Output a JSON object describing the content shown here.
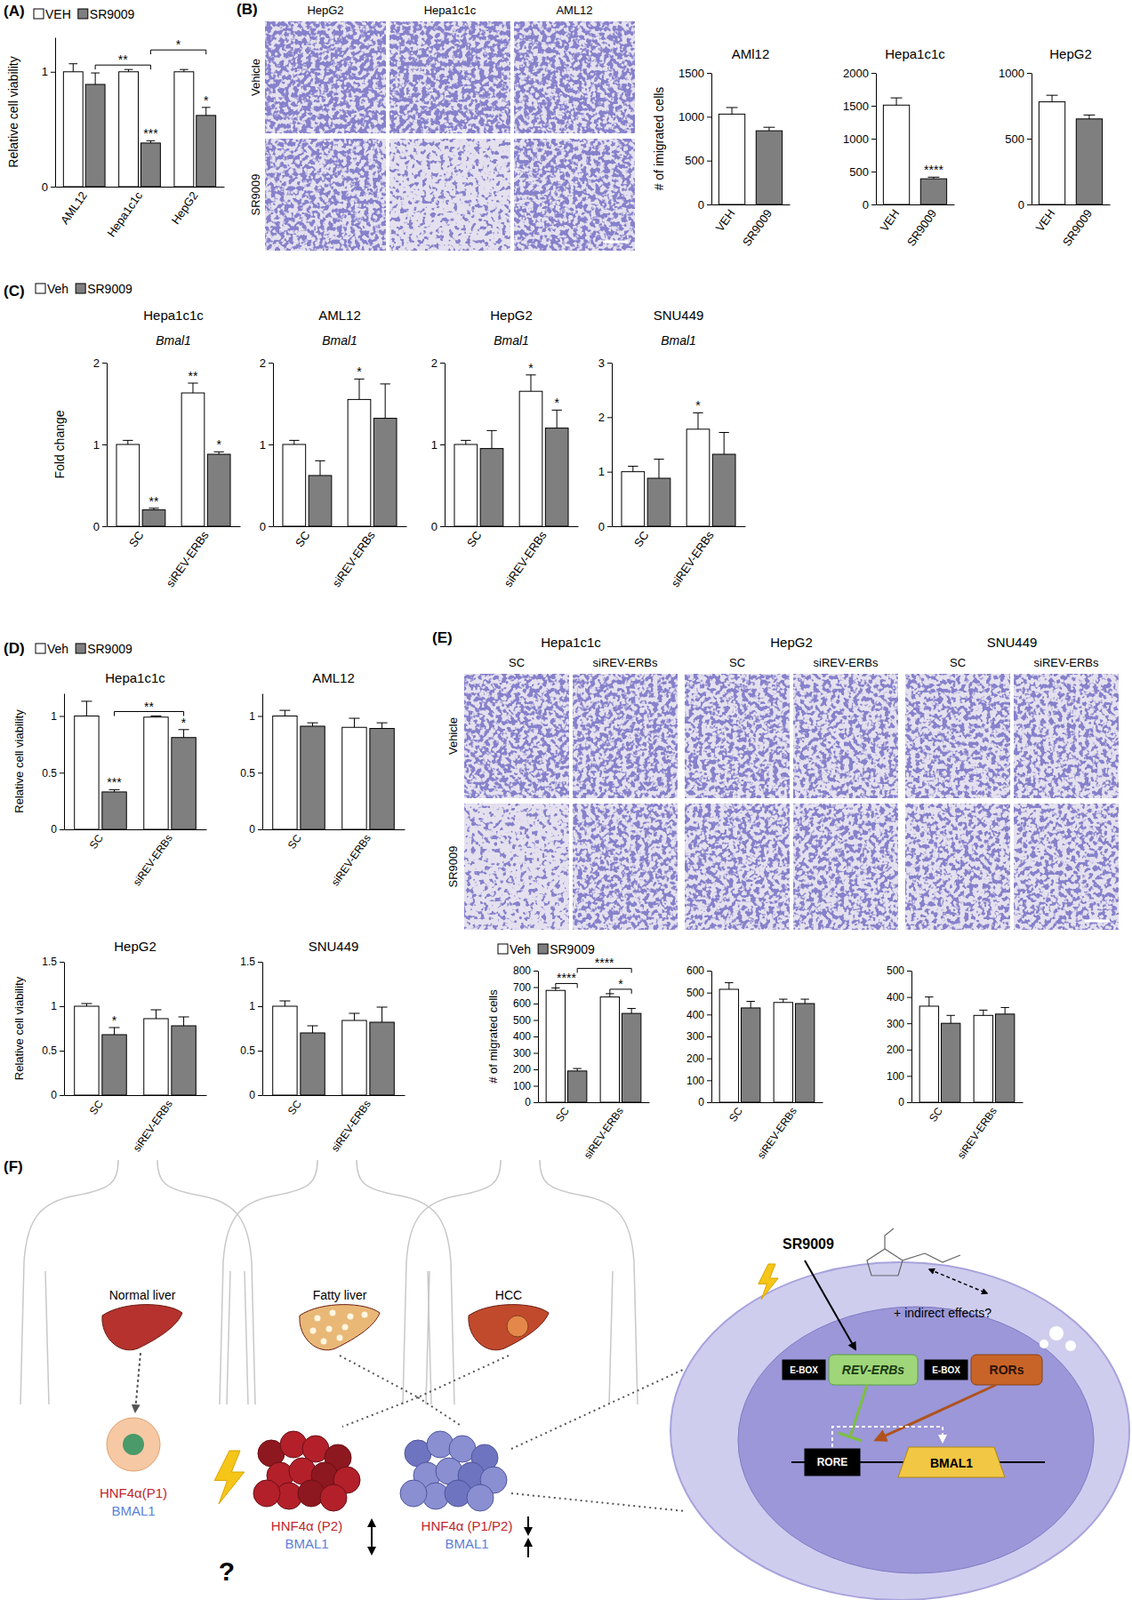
{
  "chart_data": [
    {
      "type": "bar",
      "y_label": "Relative cell viability",
      "categories": [
        "AML12",
        "Hepa1c1c",
        "HepG2"
      ],
      "series": [
        {
          "name": "VEH",
          "color": "#ffffff",
          "values": [
            1.0,
            1.0,
            1.0
          ],
          "errors": [
            0.07,
            0.02,
            0.02
          ]
        },
        {
          "name": "SR9009",
          "color": "#7f7f7f",
          "values": [
            0.89,
            0.38,
            0.62
          ],
          "errors": [
            0.1,
            0.02,
            0.07
          ]
        }
      ],
      "ylim": [
        0,
        1.3
      ],
      "yticks": [
        0,
        1
      ],
      "legend": "top-left",
      "annotations": [
        {
          "text": "***",
          "bar": [
            1,
            1
          ]
        },
        {
          "text": "*",
          "bar": [
            1,
            2
          ]
        },
        {
          "text": "**",
          "from": [
            1,
            0
          ],
          "to": [
            1,
            1
          ]
        },
        {
          "text": "*",
          "from": [
            1,
            1
          ],
          "to": [
            1,
            2
          ]
        }
      ]
    },
    {
      "type": "bar",
      "title": "AMl12",
      "y_label": "# of imigrated cells",
      "categories": [
        "VEH",
        "SR9009"
      ],
      "values": [
        1030,
        840
      ],
      "errors": [
        75,
        40
      ],
      "colors": [
        "#ffffff",
        "#7f7f7f"
      ],
      "ylim": [
        0,
        1500
      ],
      "yticks": [
        0,
        500,
        1000,
        1500
      ]
    },
    {
      "type": "bar",
      "title": "Hepa1c1c",
      "categories": [
        "VEH",
        "SR9009"
      ],
      "values": [
        1510,
        390
      ],
      "errors": [
        110,
        25
      ],
      "colors": [
        "#ffffff",
        "#7f7f7f"
      ],
      "ylim": [
        0,
        2000
      ],
      "yticks": [
        0,
        500,
        1000,
        1500,
        2000
      ],
      "annotations": [
        {
          "text": "****",
          "bar": 1
        }
      ]
    },
    {
      "type": "bar",
      "title": "HepG2",
      "categories": [
        "VEH",
        "SR9009"
      ],
      "values": [
        780,
        650
      ],
      "errors": [
        50,
        30
      ],
      "colors": [
        "#ffffff",
        "#7f7f7f"
      ],
      "ylim": [
        0,
        1000
      ],
      "yticks": [
        0,
        500,
        1000
      ]
    },
    {
      "type": "bar",
      "title": "Hepa1c1c",
      "subtitle": "Bmal1",
      "y_label": "Fold change",
      "categories": [
        "SC",
        "siREV-ERBs"
      ],
      "series": [
        {
          "name": "Veh",
          "color": "#ffffff",
          "values": [
            1.0,
            1.63
          ],
          "errors": [
            0.05,
            0.12
          ]
        },
        {
          "name": "SR9009",
          "color": "#7f7f7f",
          "values": [
            0.2,
            0.88
          ],
          "errors": [
            0.02,
            0.03
          ]
        }
      ],
      "ylim": [
        0,
        2
      ],
      "yticks": [
        0,
        1,
        2
      ],
      "legend": "top-left",
      "annotations": [
        {
          "text": "**",
          "bar": [
            1,
            0
          ]
        },
        {
          "text": "**",
          "bar": [
            0,
            1
          ]
        },
        {
          "text": "*",
          "bar": [
            1,
            1
          ]
        }
      ]
    },
    {
      "type": "bar",
      "title": "AML12",
      "subtitle": "Bmal1",
      "categories": [
        "SC",
        "siREV-ERBs"
      ],
      "series": [
        {
          "color": "#ffffff",
          "values": [
            1.0,
            1.55
          ],
          "errors": [
            0.05,
            0.25
          ]
        },
        {
          "color": "#7f7f7f",
          "values": [
            0.62,
            1.32
          ],
          "errors": [
            0.18,
            0.42
          ]
        }
      ],
      "ylim": [
        0,
        2
      ],
      "yticks": [
        0,
        1,
        2
      ],
      "annotations": [
        {
          "text": "*",
          "bar": [
            0,
            1
          ]
        }
      ]
    },
    {
      "type": "bar",
      "title": "HepG2",
      "subtitle": "Bmal1",
      "categories": [
        "SC",
        "siREV-ERBs"
      ],
      "series": [
        {
          "color": "#ffffff",
          "values": [
            1.0,
            1.65
          ],
          "errors": [
            0.05,
            0.2
          ]
        },
        {
          "color": "#7f7f7f",
          "values": [
            0.95,
            1.2
          ],
          "errors": [
            0.22,
            0.22
          ]
        }
      ],
      "ylim": [
        0,
        2
      ],
      "yticks": [
        0,
        1,
        2
      ],
      "annotations": [
        {
          "text": "*",
          "bar": [
            0,
            1
          ]
        },
        {
          "text": "*",
          "bar": [
            1,
            1
          ]
        }
      ]
    },
    {
      "type": "bar",
      "title": "SNU449",
      "subtitle": "Bmal1",
      "categories": [
        "SC",
        "siREV-ERBs"
      ],
      "series": [
        {
          "color": "#ffffff",
          "values": [
            1.0,
            1.78
          ],
          "errors": [
            0.1,
            0.3
          ]
        },
        {
          "color": "#7f7f7f",
          "values": [
            0.88,
            1.32
          ],
          "errors": [
            0.35,
            0.4
          ]
        }
      ],
      "ylim": [
        0,
        3
      ],
      "yticks": [
        0,
        1,
        2,
        3
      ],
      "annotations": [
        {
          "text": "*",
          "bar": [
            0,
            1
          ]
        }
      ]
    },
    {
      "type": "bar",
      "title": "Hepa1c1c",
      "y_label": "Relative cell viability",
      "categories": [
        "SC",
        "siREV-ERBs"
      ],
      "series": [
        {
          "name": "Veh",
          "color": "#ffffff",
          "values": [
            1.0,
            0.99
          ],
          "errors": [
            0.13,
            0.01
          ]
        },
        {
          "name": "SR9009",
          "color": "#7f7f7f",
          "values": [
            0.33,
            0.81
          ],
          "errors": [
            0.02,
            0.07
          ]
        }
      ],
      "ylim": [
        0,
        1.2
      ],
      "yticks": [
        0,
        0.5,
        1
      ],
      "legend": "top-left",
      "annotations": [
        {
          "text": "***",
          "bar": [
            1,
            0
          ]
        },
        {
          "text": "*",
          "bar": [
            1,
            1
          ]
        },
        {
          "text": "**",
          "from": [
            1,
            0
          ],
          "to": [
            1,
            1
          ]
        }
      ]
    },
    {
      "type": "bar",
      "title": "AML12",
      "categories": [
        "SC",
        "siREV-ERBs"
      ],
      "series": [
        {
          "color": "#ffffff",
          "values": [
            1.0,
            0.9
          ],
          "errors": [
            0.05,
            0.08
          ]
        },
        {
          "color": "#7f7f7f",
          "values": [
            0.91,
            0.89
          ],
          "errors": [
            0.03,
            0.05
          ]
        }
      ],
      "ylim": [
        0,
        1.2
      ],
      "yticks": [
        0,
        0.5,
        1
      ]
    },
    {
      "type": "bar",
      "title": "HepG2",
      "y_label": "Relative cell viability",
      "categories": [
        "SC",
        "siREV-ERBs"
      ],
      "series": [
        {
          "color": "#ffffff",
          "values": [
            1.0,
            0.86
          ],
          "errors": [
            0.03,
            0.1
          ]
        },
        {
          "color": "#7f7f7f",
          "values": [
            0.68,
            0.78
          ],
          "errors": [
            0.08,
            0.1
          ]
        }
      ],
      "ylim": [
        0,
        1.5
      ],
      "yticks": [
        0,
        0.5,
        1,
        1.5
      ],
      "annotations": [
        {
          "text": "*",
          "bar": [
            1,
            0
          ]
        }
      ]
    },
    {
      "type": "bar",
      "title": "SNU449",
      "categories": [
        "SC",
        "siREV-ERBs"
      ],
      "series": [
        {
          "color": "#ffffff",
          "values": [
            1.0,
            0.84
          ],
          "errors": [
            0.06,
            0.08
          ]
        },
        {
          "color": "#7f7f7f",
          "values": [
            0.7,
            0.82
          ],
          "errors": [
            0.08,
            0.17
          ]
        }
      ],
      "ylim": [
        0,
        1.5
      ],
      "yticks": [
        0,
        0.5,
        1,
        1.5
      ]
    },
    {
      "type": "bar",
      "y_label": "# of migrated cells",
      "categories": [
        "SC",
        "siREV-ERBs"
      ],
      "series": [
        {
          "name": "Veh",
          "color": "#ffffff",
          "values": [
            680,
            640
          ],
          "errors": [
            15,
            20
          ]
        },
        {
          "name": "SR9009",
          "color": "#7f7f7f",
          "values": [
            190,
            540
          ],
          "errors": [
            15,
            30
          ]
        }
      ],
      "ylim": [
        0,
        800
      ],
      "yticks": [
        0,
        100,
        200,
        300,
        400,
        500,
        600,
        700,
        800
      ],
      "legend": "top-left",
      "annotations": [
        {
          "text": "****",
          "from": [
            0,
            0
          ],
          "to": [
            1,
            0
          ]
        },
        {
          "text": "*",
          "from": [
            0,
            1
          ],
          "to": [
            1,
            1
          ]
        },
        {
          "text": "****",
          "from": [
            1,
            0
          ],
          "to": [
            1,
            1
          ]
        }
      ]
    },
    {
      "type": "bar",
      "categories": [
        "SC",
        "siREV-ERBs"
      ],
      "series": [
        {
          "color": "#ffffff",
          "values": [
            515,
            455
          ],
          "errors": [
            30,
            15
          ]
        },
        {
          "color": "#7f7f7f",
          "values": [
            430,
            450
          ],
          "errors": [
            30,
            20
          ]
        }
      ],
      "ylim": [
        0,
        600
      ],
      "yticks": [
        0,
        100,
        200,
        300,
        400,
        500,
        600
      ]
    },
    {
      "type": "bar",
      "categories": [
        "SC",
        "siREV-ERBs"
      ],
      "series": [
        {
          "color": "#ffffff",
          "values": [
            365,
            330
          ],
          "errors": [
            35,
            20
          ]
        },
        {
          "color": "#7f7f7f",
          "values": [
            300,
            335
          ],
          "errors": [
            30,
            25
          ]
        }
      ],
      "ylim": [
        0,
        500
      ],
      "yticks": [
        0,
        100,
        200,
        300,
        400,
        500
      ]
    }
  ],
  "figure": {
    "panels": [
      "(A)",
      "(B)",
      "(C)",
      "(D)",
      "(E)",
      "(F)"
    ],
    "b_images": {
      "columns": [
        "HepG2",
        "Hepa1c1c",
        "AML12"
      ],
      "rows": [
        "Vehicle",
        "SR9009"
      ]
    },
    "e_images": {
      "groups": [
        {
          "title": "Hepa1c1c",
          "columns": [
            "SC",
            "siREV-ERBs"
          ]
        },
        {
          "title": "HepG2",
          "columns": [
            "SC",
            "siREV-ERBs"
          ]
        },
        {
          "title": "SNU449",
          "columns": [
            "SC",
            "siREV-ERBs"
          ]
        }
      ],
      "rows": [
        "Vehicle",
        "SR9009"
      ]
    },
    "diagram": {
      "stages": [
        "Normal liver",
        "Fatty liver",
        "HCC"
      ],
      "normal_cell": [
        "HNF4α(P1)",
        "BMAL1"
      ],
      "tumor_clusters": [
        [
          "HNF4α (P2)",
          "BMAL1"
        ],
        [
          "HNF4α (P1/P2)",
          "BMAL1"
        ]
      ],
      "question": "?",
      "drug": "SR9009",
      "indirect": "+ indirect effects?",
      "ebox": "E-BOX",
      "rev_erbs": "REV-ERBs",
      "rors": "RORs",
      "rore": "RORE",
      "gene": "BMAL1"
    }
  }
}
